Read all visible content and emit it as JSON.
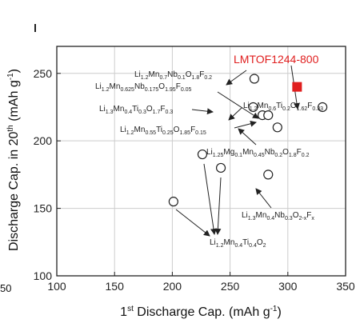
{
  "chart_data": {
    "type": "scatter",
    "title": "",
    "xlabel": "1st Discharge Cap. (mAh g-1)",
    "ylabel": "Discharge Cap. in 20th (mAh g-1)",
    "xlim": [
      100,
      350
    ],
    "ylim": [
      100,
      270
    ],
    "xticks": [
      "100",
      "150",
      "200",
      "250",
      "300",
      "350"
    ],
    "yticks": [
      "100",
      "150",
      "200",
      "250"
    ],
    "grid": true,
    "cropped_tick": "50",
    "series": [
      {
        "name": "",
        "marker": "open-circle",
        "points": [
          {
            "x": 271,
            "y": 246
          },
          {
            "x": 270,
            "y": 225
          },
          {
            "x": 278,
            "y": 219
          },
          {
            "x": 283,
            "y": 219
          },
          {
            "x": 291,
            "y": 210
          },
          {
            "x": 330,
            "y": 225
          },
          {
            "x": 226,
            "y": 190
          },
          {
            "x": 242,
            "y": 180
          },
          {
            "x": 283,
            "y": 175
          },
          {
            "x": 201,
            "y": 155
          }
        ]
      },
      {
        "name": "LMTOF1244-800",
        "marker": "filled-square",
        "color": "#e01e1e",
        "points": [
          {
            "x": 308,
            "y": 240
          }
        ]
      }
    ],
    "annotations": [
      {
        "text": "LMTOF1244-800",
        "color": "#e01e1e"
      },
      {
        "text": "Li1.2Mn0.7Nb0.1O1.8F0.2"
      },
      {
        "text": "Li1.2Mn0.625Nb0.175O1.95F0.05"
      },
      {
        "text": "Li1.3Mn0.4Ti0.3O1.7F0.3"
      },
      {
        "text": "Li1.2Mn0.55Ti0.25O1.85F0.15"
      },
      {
        "text": "Li1.2Mn0.6Ti0.2O1.62F0.33"
      },
      {
        "text": "Li1.25Mg0.1Mn0.45Nb0.2O1.8F0.2"
      },
      {
        "text": "Li1.3Mn0.4Nb0.3O2-xFx"
      },
      {
        "text": "Li1.2Mn0.4Ti0.4O2"
      }
    ]
  }
}
